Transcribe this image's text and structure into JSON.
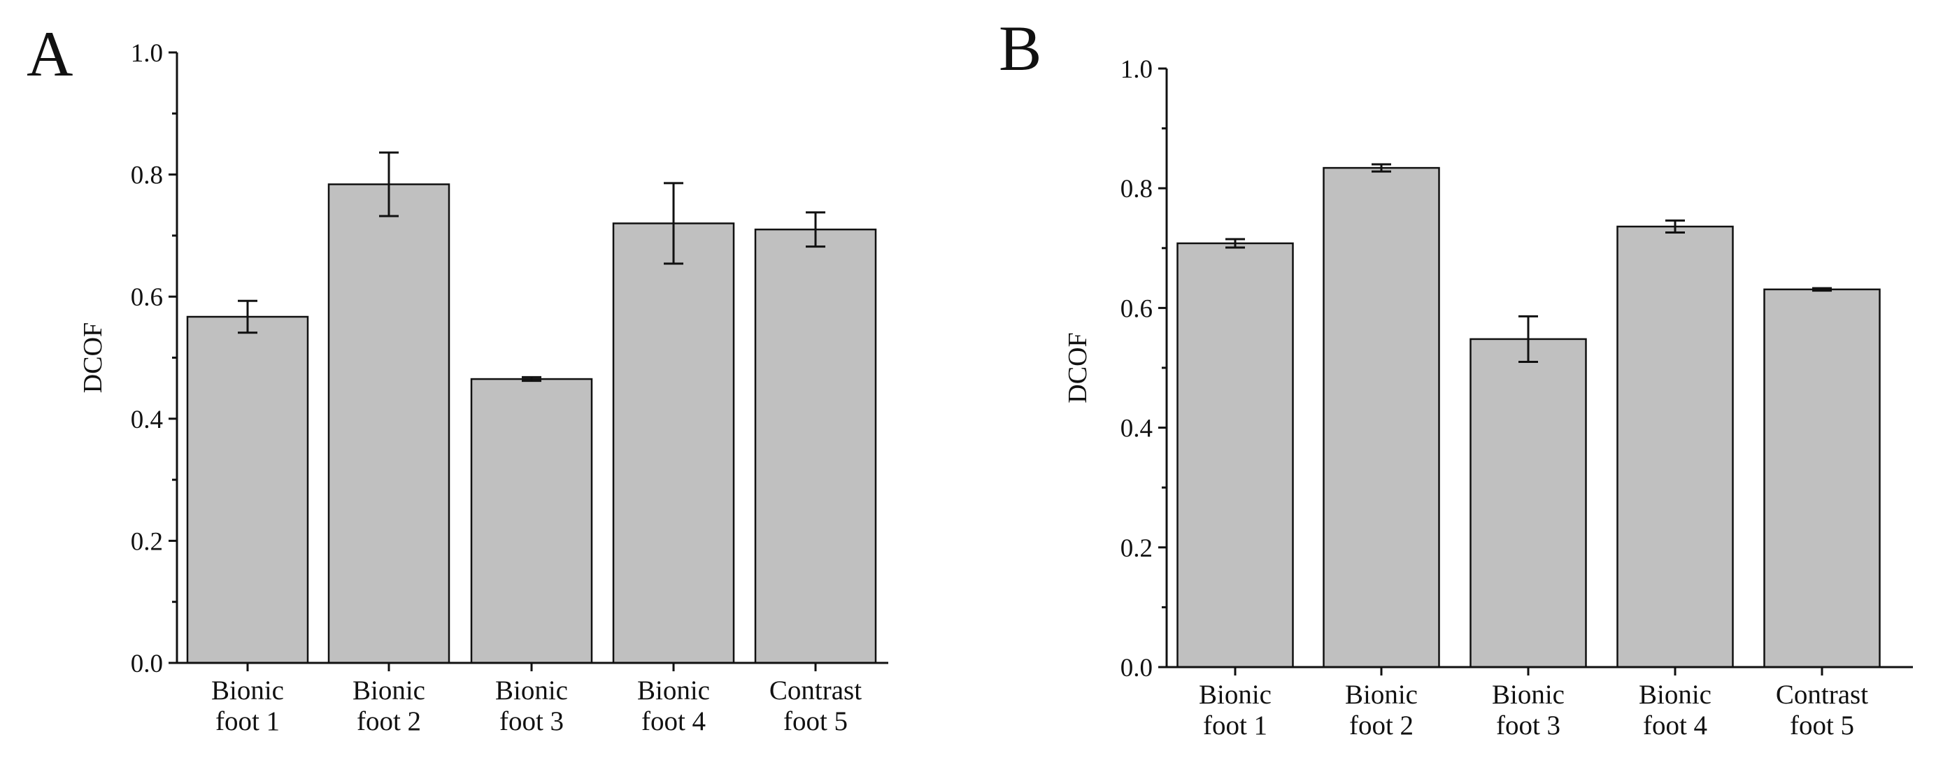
{
  "chart_data": [
    {
      "type": "bar",
      "panel_label": "A",
      "title": "",
      "xlabel": "",
      "ylabel": "DCOF",
      "ylim": [
        0.0,
        1.0
      ],
      "yticks": [
        "0.0",
        "0.2",
        "0.4",
        "0.6",
        "0.8",
        "1.0"
      ],
      "categories": [
        [
          "Bionic",
          "foot 1"
        ],
        [
          "Bionic",
          "foot 2"
        ],
        [
          "Bionic",
          "foot 3"
        ],
        [
          "Bionic",
          "foot 4"
        ],
        [
          "Contrast",
          "foot 5"
        ]
      ],
      "values": [
        0.567,
        0.784,
        0.465,
        0.72,
        0.71
      ],
      "errors": [
        0.026,
        0.052,
        0.003,
        0.066,
        0.028
      ],
      "bar_color": "#c0c0c0"
    },
    {
      "type": "bar",
      "panel_label": "B",
      "title": "",
      "xlabel": "",
      "ylabel": "DCOF",
      "ylim": [
        0.0,
        1.0
      ],
      "yticks": [
        "0.0",
        "0.2",
        "0.4",
        "0.6",
        "0.8",
        "1.0"
      ],
      "categories": [
        [
          "Bionic",
          "foot 1"
        ],
        [
          "Bionic",
          "foot 2"
        ],
        [
          "Bionic",
          "foot 3"
        ],
        [
          "Bionic",
          "foot 4"
        ],
        [
          "Contrast",
          "foot 5"
        ]
      ],
      "values": [
        0.708,
        0.834,
        0.548,
        0.736,
        0.631
      ],
      "errors": [
        0.007,
        0.006,
        0.038,
        0.01,
        0.002
      ],
      "bar_color": "#c0c0c0"
    }
  ]
}
